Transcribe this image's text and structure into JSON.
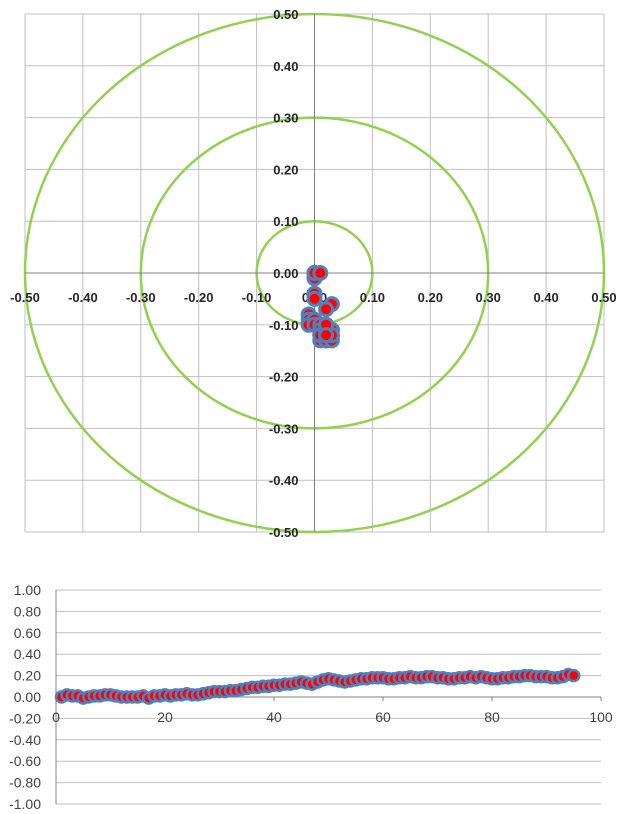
{
  "chart_data": [
    {
      "type": "scatter",
      "xlim": [
        -0.5,
        0.5
      ],
      "ylim": [
        -0.5,
        0.5
      ],
      "x_ticks": [
        "-0.50",
        "-0.40",
        "-0.30",
        "-0.20",
        "-0.10",
        "0.00",
        "0.10",
        "0.20",
        "0.30",
        "0.40",
        "0.50"
      ],
      "y_ticks": [
        "0.50",
        "0.40",
        "0.30",
        "0.20",
        "0.10",
        "0.00",
        "-0.10",
        "-0.20",
        "-0.30",
        "-0.40",
        "-0.50"
      ],
      "grid": true,
      "axes_crossing": "origin",
      "circles": [
        0.1,
        0.3,
        0.5
      ],
      "circle_color": "#92D050",
      "marker_fill": "#FF0000",
      "marker_edge": "#4F81BD",
      "series": [
        {
          "x": [
            0.0,
            0.0,
            0.0,
            0.0,
            0.0,
            0.0,
            0.0,
            0.01,
            0.0,
            0.0,
            0.0,
            -0.01,
            -0.01,
            -0.01,
            0.0,
            0.0,
            0.01,
            0.01,
            0.02,
            0.02,
            0.02,
            0.02,
            0.03,
            0.03,
            0.01,
            0.01,
            0.01,
            0.02,
            0.02,
            0.02,
            0.02,
            0.02,
            0.02,
            0.02,
            0.03,
            0.03,
            0.02,
            0.02,
            0.02,
            0.02,
            0.02,
            0.02,
            0.03,
            0.03,
            0.03,
            0.03,
            0.02,
            0.02,
            0.02
          ],
          "y": [
            0.0,
            -0.01,
            0.0,
            0.0,
            -0.01,
            0.0,
            0.0,
            0.0,
            -0.04,
            -0.04,
            -0.05,
            -0.08,
            -0.09,
            -0.1,
            -0.09,
            -0.1,
            -0.1,
            -0.11,
            -0.1,
            -0.11,
            -0.12,
            -0.13,
            -0.12,
            -0.11,
            -0.12,
            -0.13,
            -0.12,
            -0.12,
            -0.11,
            -0.12,
            -0.13,
            -0.12,
            -0.11,
            -0.12,
            -0.12,
            -0.11,
            -0.12,
            -0.12,
            -0.11,
            -0.12,
            -0.11,
            -0.12,
            -0.12,
            -0.13,
            -0.12,
            -0.06,
            -0.07,
            -0.1,
            -0.12
          ]
        }
      ]
    },
    {
      "type": "scatter",
      "xlim": [
        0,
        100
      ],
      "ylim": [
        -1.0,
        1.0
      ],
      "x_ticks": [
        "0",
        "20",
        "40",
        "60",
        "80",
        "100"
      ],
      "y_ticks": [
        "1.00",
        "0.80",
        "0.60",
        "0.40",
        "0.20",
        "0.00",
        "-0.20",
        "-0.40",
        "-0.60",
        "-0.80",
        "-1.00"
      ],
      "grid": true,
      "marker_fill": "#FF0000",
      "marker_edge": "#4F81BD",
      "series": [
        {
          "x": [
            1,
            2,
            3,
            4,
            5,
            6,
            7,
            8,
            9,
            10,
            11,
            12,
            13,
            14,
            15,
            16,
            17,
            18,
            19,
            20,
            21,
            22,
            23,
            24,
            25,
            26,
            27,
            28,
            29,
            30,
            31,
            32,
            33,
            34,
            35,
            36,
            37,
            38,
            39,
            40,
            41,
            42,
            43,
            44,
            45,
            46,
            47,
            48,
            49,
            50,
            51,
            52,
            53,
            54,
            55,
            56,
            57,
            58,
            59,
            60,
            61,
            62,
            63,
            64,
            65,
            66,
            67,
            68,
            69,
            70,
            71,
            72,
            73,
            74,
            75,
            76,
            77,
            78,
            79,
            80,
            81,
            82,
            83,
            84,
            85,
            86,
            87,
            88,
            89,
            90,
            91,
            92,
            93,
            94,
            95
          ],
          "y": [
            0.0,
            0.02,
            0.01,
            0.01,
            -0.01,
            0.0,
            0.01,
            0.01,
            0.02,
            0.02,
            0.01,
            0.0,
            0.0,
            0.0,
            0.0,
            0.01,
            -0.01,
            0.01,
            0.01,
            0.02,
            0.01,
            0.02,
            0.02,
            0.03,
            0.02,
            0.02,
            0.03,
            0.04,
            0.05,
            0.05,
            0.05,
            0.06,
            0.06,
            0.07,
            0.08,
            0.09,
            0.09,
            0.1,
            0.1,
            0.11,
            0.11,
            0.12,
            0.12,
            0.13,
            0.14,
            0.13,
            0.12,
            0.14,
            0.16,
            0.17,
            0.16,
            0.15,
            0.14,
            0.15,
            0.16,
            0.17,
            0.17,
            0.18,
            0.18,
            0.18,
            0.17,
            0.17,
            0.18,
            0.18,
            0.19,
            0.18,
            0.18,
            0.19,
            0.19,
            0.18,
            0.18,
            0.17,
            0.17,
            0.18,
            0.18,
            0.19,
            0.18,
            0.19,
            0.18,
            0.17,
            0.17,
            0.18,
            0.18,
            0.19,
            0.19,
            0.2,
            0.2,
            0.19,
            0.19,
            0.19,
            0.18,
            0.18,
            0.19,
            0.21,
            0.2
          ]
        }
      ]
    }
  ]
}
